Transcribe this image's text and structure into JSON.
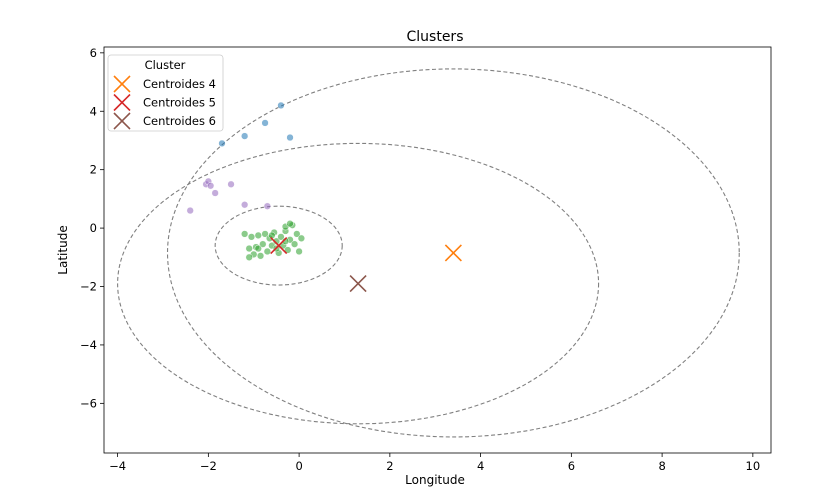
{
  "chart_data": {
    "type": "scatter",
    "title": "Clusters",
    "xlabel": "Longitude",
    "ylabel": "Latitude",
    "xlim": [
      -4.3,
      10.4
    ],
    "ylim": [
      -7.7,
      6.2
    ],
    "xticks": [
      -4,
      -2,
      0,
      2,
      4,
      6,
      8,
      10
    ],
    "yticks": [
      -6,
      -4,
      -2,
      0,
      2,
      4,
      6
    ],
    "grid": false,
    "legend": {
      "placement": "top-left",
      "title": "Cluster",
      "entries": [
        {
          "label": "Centroides 4",
          "color": "#ff7f0e"
        },
        {
          "label": "Centroides 5",
          "color": "#d62728"
        },
        {
          "label": "Centroides 6",
          "color": "#8c564b"
        }
      ]
    },
    "groups": [
      {
        "color": "#1f77b4",
        "points": [
          [
            -1.7,
            2.9
          ],
          [
            -1.2,
            3.15
          ],
          [
            -0.75,
            3.6
          ],
          [
            -0.4,
            4.2
          ],
          [
            -0.2,
            3.1
          ]
        ]
      },
      {
        "color": "#9467bd",
        "points": [
          [
            -2.4,
            0.6
          ],
          [
            -2.05,
            1.5
          ],
          [
            -2.0,
            1.6
          ],
          [
            -1.95,
            1.45
          ],
          [
            -1.85,
            1.2
          ],
          [
            -1.5,
            1.5
          ],
          [
            -1.2,
            0.8
          ],
          [
            -0.7,
            0.75
          ]
        ]
      },
      {
        "color": "#2ca02c",
        "points": [
          [
            -1.2,
            -0.2
          ],
          [
            -1.1,
            -0.7
          ],
          [
            -1.05,
            -0.3
          ],
          [
            -1.0,
            -0.9
          ],
          [
            -0.95,
            -0.65
          ],
          [
            -0.9,
            -0.25
          ],
          [
            -0.85,
            -0.95
          ],
          [
            -0.8,
            -0.55
          ],
          [
            -0.75,
            -0.2
          ],
          [
            -0.7,
            -0.8
          ],
          [
            -0.65,
            -0.35
          ],
          [
            -0.6,
            -0.6
          ],
          [
            -0.55,
            -0.15
          ],
          [
            -0.5,
            -0.45
          ],
          [
            -0.45,
            -0.85
          ],
          [
            -0.4,
            -0.3
          ],
          [
            -0.35,
            -0.6
          ],
          [
            -0.3,
            -0.1
          ],
          [
            -0.25,
            -0.75
          ],
          [
            -0.2,
            -0.4
          ],
          [
            -0.15,
            0.1
          ],
          [
            -0.1,
            -0.55
          ],
          [
            -0.05,
            -0.2
          ],
          [
            0.0,
            -0.8
          ],
          [
            0.05,
            -0.35
          ],
          [
            -0.3,
            0.05
          ],
          [
            -0.2,
            0.15
          ],
          [
            -0.6,
            -0.25
          ],
          [
            -1.1,
            -1.0
          ],
          [
            -0.9,
            -0.7
          ],
          [
            -0.5,
            -0.7
          ],
          [
            -0.3,
            -0.45
          ]
        ]
      }
    ],
    "centroids": [
      {
        "name": "Centroides 4",
        "color": "#ff7f0e",
        "x": 3.4,
        "y": -0.85
      },
      {
        "name": "Centroides 5",
        "color": "#d62728",
        "x": -0.45,
        "y": -0.6
      },
      {
        "name": "Centroides 6",
        "color": "#8c564b",
        "x": 1.3,
        "y": -1.9
      }
    ],
    "circles": [
      {
        "cx": 3.4,
        "cy": -0.85,
        "rx": 6.3,
        "ry": 6.3
      },
      {
        "cx": 1.3,
        "cy": -1.9,
        "rx": 5.3,
        "ry": 4.8
      },
      {
        "cx": -0.45,
        "cy": -0.6,
        "rx": 1.4,
        "ry": 1.35
      }
    ]
  }
}
